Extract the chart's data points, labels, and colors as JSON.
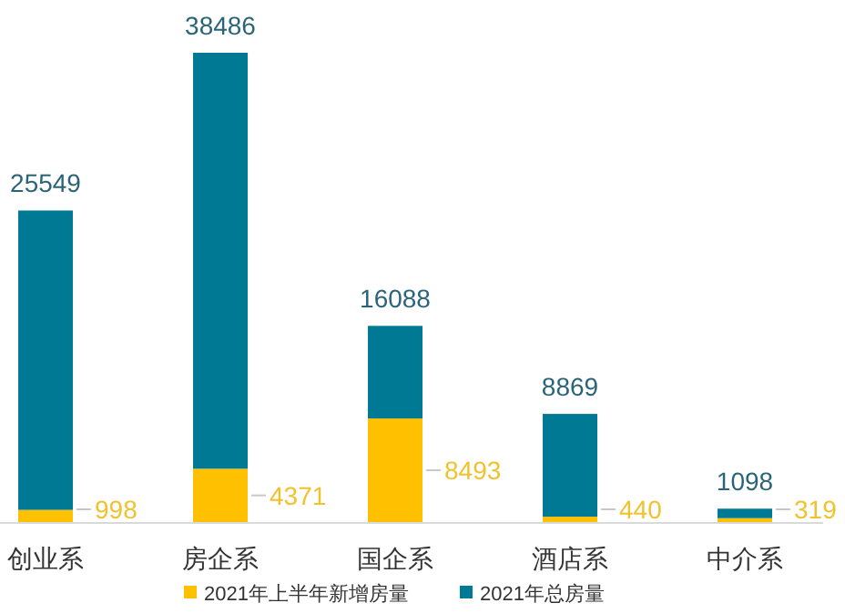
{
  "chart_data": {
    "type": "bar",
    "stacked": true,
    "categories": [
      "创业系",
      "房企系",
      "国企系",
      "酒店系",
      "中介系"
    ],
    "series": [
      {
        "name": "2021年上半年新增房量",
        "color": "#ffc000",
        "values": [
          998,
          4371,
          8493,
          440,
          319
        ],
        "value_labels": [
          "998",
          "4371",
          "8493",
          "440",
          "319"
        ]
      },
      {
        "name": "2021年总房量",
        "color": "#007a94",
        "values": [
          24551,
          34115,
          7595,
          8429,
          779
        ]
      }
    ],
    "totals": [
      "25549",
      "38486",
      "16088",
      "8869",
      "1098"
    ],
    "legend": "bottom",
    "grid": false
  }
}
